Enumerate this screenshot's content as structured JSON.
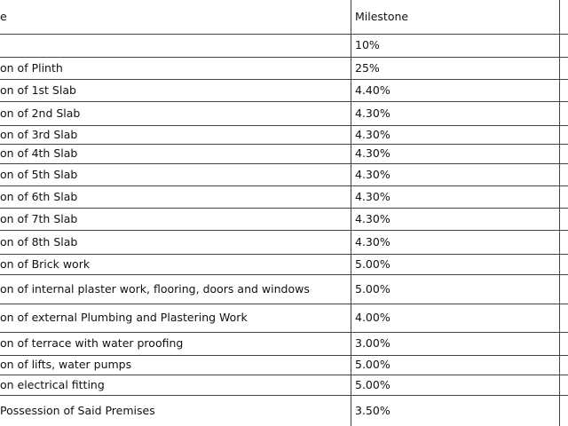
{
  "table": {
    "header": [
      "e",
      "Milestone"
    ],
    "rows": [
      [
        "",
        "10%"
      ],
      [
        "on of Plinth",
        "25%"
      ],
      [
        "on of 1st Slab",
        "4.40%"
      ],
      [
        "on of 2nd Slab",
        "4.30%"
      ],
      [
        "on of 3rd Slab",
        "4.30%"
      ],
      [
        "on of 4th Slab",
        "4.30%"
      ],
      [
        "on of 5th Slab",
        "4.30%"
      ],
      [
        "on of 6th Slab",
        "4.30%"
      ],
      [
        "on of 7th Slab",
        "4.30%"
      ],
      [
        "on of 8th Slab",
        "4.30%"
      ],
      [
        "on of Brick work",
        "5.00%"
      ],
      [
        "on of internal plaster work, flooring, doors and windows",
        "5.00%"
      ],
      [
        "on of external Plumbing and Plastering Work",
        "4.00%"
      ],
      [
        "on of terrace with water proofing",
        "3.00%"
      ],
      [
        "on of lifts, water pumps",
        "5.00%"
      ],
      [
        "on electrical fitting",
        "5.00%"
      ],
      [
        "Possession of Said Premises",
        "3.50%"
      ]
    ]
  }
}
